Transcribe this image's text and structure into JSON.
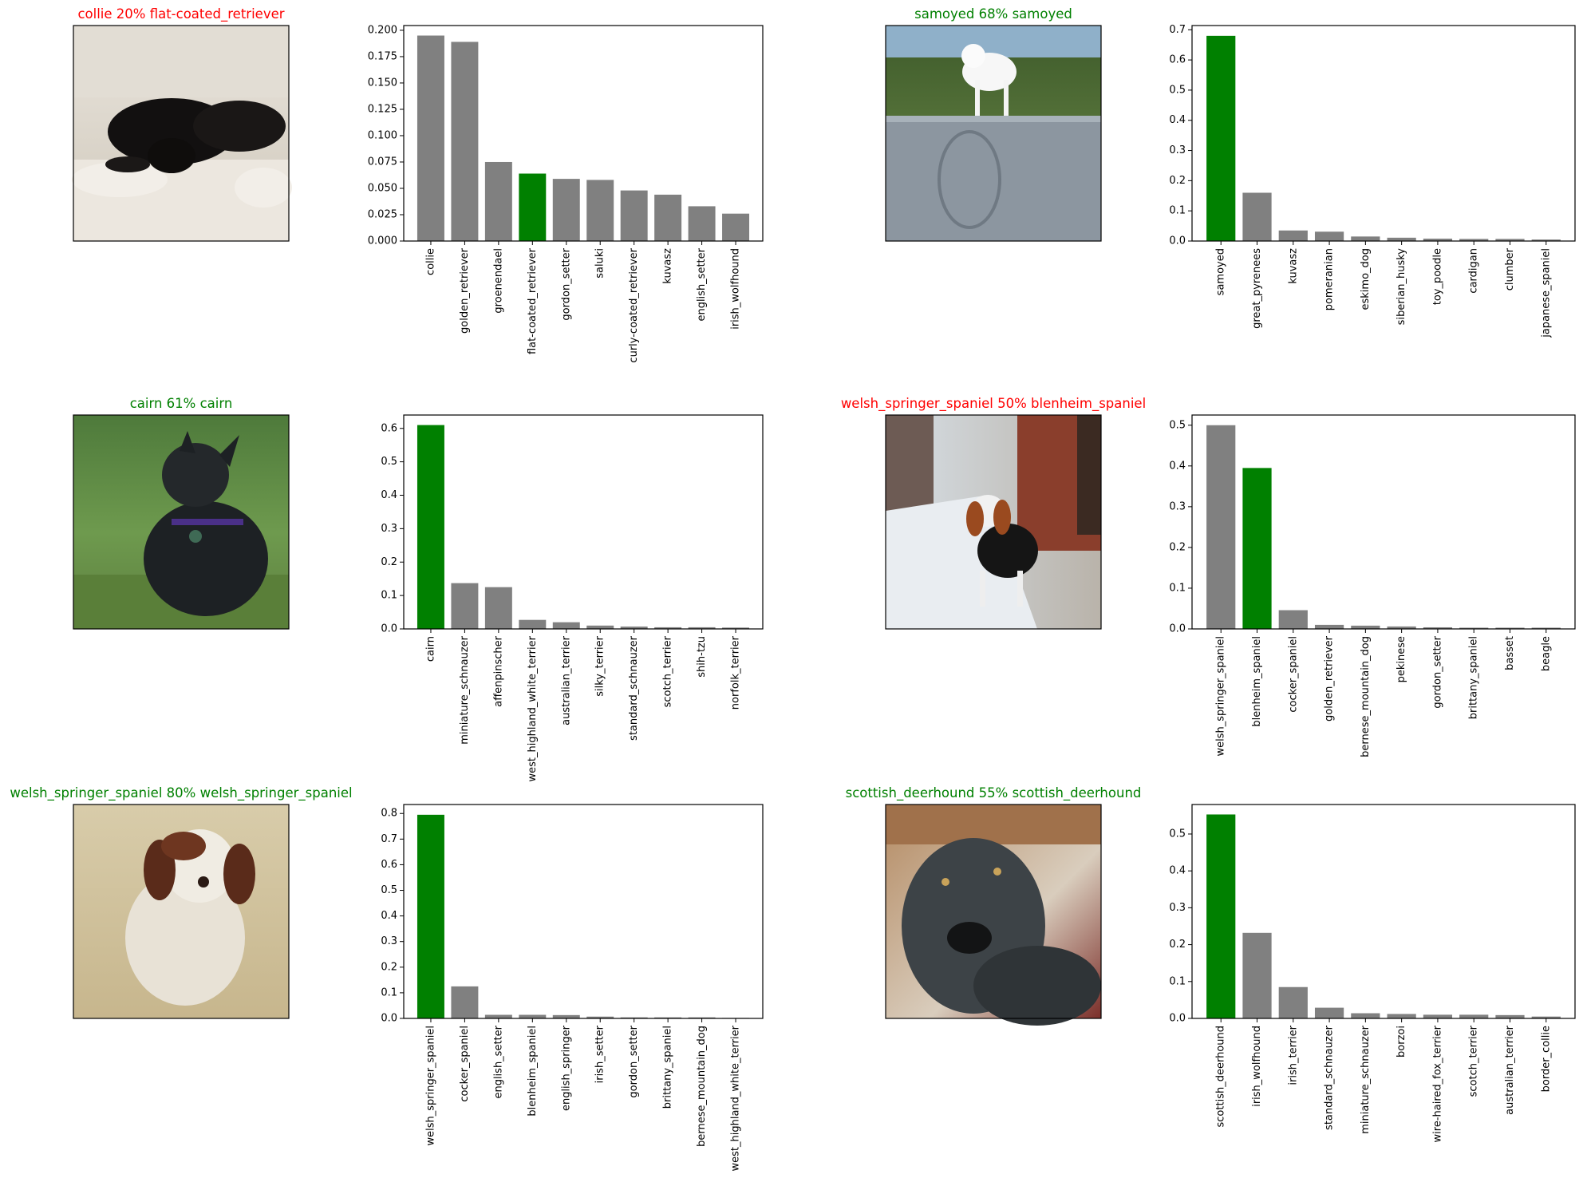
{
  "colors": {
    "correct": "#008000",
    "wrong": "#ff0000",
    "bar": "#808080",
    "highlight": "#008000"
  },
  "panels": [
    {
      "title": "collie 20% flat-coated_retriever",
      "correct": false,
      "photo_icon": "black-dog-on-couch-photo",
      "chart_data": {
        "type": "bar",
        "categories": [
          "collie",
          "golden_retriever",
          "groenendael",
          "flat-coated_retriever",
          "gordon_setter",
          "saluki",
          "curly-coated_retriever",
          "kuvasz",
          "english_setter",
          "irish_wolfhound"
        ],
        "values": [
          0.195,
          0.189,
          0.075,
          0.064,
          0.059,
          0.058,
          0.048,
          0.044,
          0.033,
          0.026
        ],
        "highlight_index": 3,
        "yticks": [
          "0.000",
          "0.025",
          "0.050",
          "0.075",
          "0.100",
          "0.125",
          "0.150",
          "0.175",
          "0.200"
        ],
        "ylim": [
          0,
          0.2045
        ]
      }
    },
    {
      "title": "samoyed 68% samoyed",
      "correct": true,
      "photo_icon": "white-dog-on-stone-wall-photo",
      "chart_data": {
        "type": "bar",
        "categories": [
          "samoyed",
          "great_pyrenees",
          "kuvasz",
          "pomeranian",
          "eskimo_dog",
          "siberian_husky",
          "toy_poodle",
          "cardigan",
          "clumber",
          "japanese_spaniel"
        ],
        "values": [
          0.68,
          0.16,
          0.035,
          0.031,
          0.015,
          0.011,
          0.008,
          0.007,
          0.007,
          0.005
        ],
        "highlight_index": 0,
        "yticks": [
          "0.0",
          "0.1",
          "0.2",
          "0.3",
          "0.4",
          "0.5",
          "0.6",
          "0.7"
        ],
        "ylim": [
          0,
          0.714
        ]
      }
    },
    {
      "title": "cairn 61% cairn",
      "correct": true,
      "photo_icon": "dark-terrier-in-garden-photo",
      "chart_data": {
        "type": "bar",
        "categories": [
          "cairn",
          "miniature_schnauzer",
          "affenpinscher",
          "west_highland_white_terrier",
          "australian_terrier",
          "silky_terrier",
          "standard_schnauzer",
          "scotch_terrier",
          "shih-tzu",
          "norfolk_terrier"
        ],
        "values": [
          0.61,
          0.137,
          0.125,
          0.027,
          0.02,
          0.01,
          0.007,
          0.005,
          0.005,
          0.004
        ],
        "highlight_index": 0,
        "yticks": [
          "0.0",
          "0.1",
          "0.2",
          "0.3",
          "0.4",
          "0.5",
          "0.6"
        ],
        "ylim": [
          0,
          0.64
        ]
      }
    },
    {
      "title": "welsh_springer_spaniel 50% blenheim_spaniel",
      "correct": false,
      "photo_icon": "spaniel-in-jacket-on-sidewalk-photo",
      "chart_data": {
        "type": "bar",
        "categories": [
          "welsh_springer_spaniel",
          "blenheim_spaniel",
          "cocker_spaniel",
          "golden_retriever",
          "bernese_mountain_dog",
          "pekinese",
          "gordon_setter",
          "brittany_spaniel",
          "basset",
          "beagle"
        ],
        "values": [
          0.5,
          0.395,
          0.046,
          0.01,
          0.008,
          0.006,
          0.004,
          0.003,
          0.003,
          0.003
        ],
        "highlight_index": 1,
        "yticks": [
          "0.0",
          "0.1",
          "0.2",
          "0.3",
          "0.4",
          "0.5"
        ],
        "ylim": [
          0,
          0.525
        ]
      }
    },
    {
      "title": "welsh_springer_spaniel 80% welsh_springer_spaniel",
      "correct": true,
      "photo_icon": "wet-spaniel-on-sand-photo",
      "chart_data": {
        "type": "bar",
        "categories": [
          "welsh_springer_spaniel",
          "cocker_spaniel",
          "english_setter",
          "blenheim_spaniel",
          "english_springer",
          "irish_setter",
          "gordon_setter",
          "brittany_spaniel",
          "bernese_mountain_dog",
          "west_highland_white_terrier"
        ],
        "values": [
          0.795,
          0.125,
          0.014,
          0.014,
          0.013,
          0.007,
          0.004,
          0.004,
          0.004,
          0.002
        ],
        "highlight_index": 0,
        "yticks": [
          "0.0",
          "0.1",
          "0.2",
          "0.3",
          "0.4",
          "0.5",
          "0.6",
          "0.7",
          "0.8"
        ],
        "ylim": [
          0,
          0.835
        ]
      }
    },
    {
      "title": "scottish_deerhound 55% scottish_deerhound",
      "correct": true,
      "photo_icon": "grey-deerhound-closeup-photo",
      "chart_data": {
        "type": "bar",
        "categories": [
          "scottish_deerhound",
          "irish_wolfhound",
          "irish_terrier",
          "standard_schnauzer",
          "miniature_schnauzer",
          "borzoi",
          "wire-haired_fox_terrier",
          "scotch_terrier",
          "australian_terrier",
          "border_collie"
        ],
        "values": [
          0.553,
          0.232,
          0.085,
          0.029,
          0.014,
          0.012,
          0.01,
          0.01,
          0.009,
          0.005
        ],
        "highlight_index": 0,
        "yticks": [
          "0.0",
          "0.1",
          "0.2",
          "0.3",
          "0.4",
          "0.5"
        ],
        "ylim": [
          0,
          0.58
        ]
      }
    }
  ]
}
